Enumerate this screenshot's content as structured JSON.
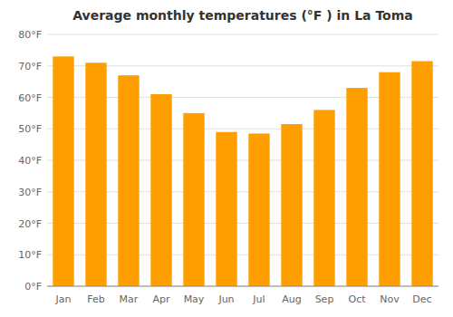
{
  "chart_data": {
    "type": "bar",
    "title": "Average monthly temperatures (°F ) in La Toma",
    "categories": [
      "Jan",
      "Feb",
      "Mar",
      "Apr",
      "May",
      "Jun",
      "Jul",
      "Aug",
      "Sep",
      "Oct",
      "Nov",
      "Dec"
    ],
    "values": [
      73,
      71,
      67,
      61,
      55,
      49,
      48.5,
      51.5,
      56,
      63,
      68,
      71.5
    ],
    "color": "#ff9e00",
    "ylim": [
      0,
      80
    ],
    "yticks": [
      {
        "value": 0,
        "label": "0°F"
      },
      {
        "value": 10,
        "label": "10°F"
      },
      {
        "value": 20,
        "label": "20°F"
      },
      {
        "value": 30,
        "label": "30°F"
      },
      {
        "value": 40,
        "label": "40°F"
      },
      {
        "value": 50,
        "label": "50°F"
      },
      {
        "value": 60,
        "label": "60°F"
      },
      {
        "value": 70,
        "label": "70°F"
      },
      {
        "value": 80,
        "label": "80°F"
      }
    ],
    "grid": true
  }
}
